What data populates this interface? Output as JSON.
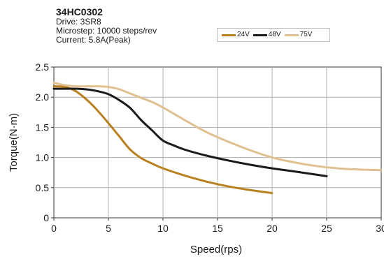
{
  "header": {
    "title": "34HC0302",
    "drive": "Drive: 3SR8",
    "microstep": "Microstep: 10000 steps/rev",
    "current": "Current: 5.8A(Peak)"
  },
  "chart_data": {
    "type": "line",
    "title": "34HC0302",
    "xlabel": "Speed(rps)",
    "ylabel": "Torque(N·m)",
    "xlim": [
      0,
      30
    ],
    "ylim": [
      0,
      2.5
    ],
    "xticks": [
      0,
      5,
      10,
      15,
      20,
      25,
      30
    ],
    "yticks": [
      0,
      0.5,
      1.0,
      1.5,
      2.0,
      2.5
    ],
    "xtick_labels": [
      "0",
      "5",
      "10",
      "15",
      "20",
      "25",
      "30"
    ],
    "ytick_labels": [
      "0",
      "0.5",
      "1.0",
      "1.5",
      "2.0",
      "2.5"
    ],
    "grid": true,
    "legend_position": "top-right",
    "series": [
      {
        "name": "24V",
        "color": "#b8801f",
        "x": [
          0,
          1,
          2,
          3,
          4,
          5,
          6,
          7,
          8,
          9,
          10,
          12,
          14,
          16,
          18,
          20
        ],
        "y": [
          2.18,
          2.17,
          2.1,
          1.96,
          1.78,
          1.57,
          1.35,
          1.13,
          0.99,
          0.9,
          0.82,
          0.7,
          0.6,
          0.52,
          0.46,
          0.41
        ]
      },
      {
        "name": "48V",
        "color": "#1a1a1a",
        "x": [
          0,
          1,
          2,
          3,
          4,
          5,
          6,
          7,
          8,
          9,
          10,
          11,
          12,
          14,
          16,
          18,
          20,
          22,
          25
        ],
        "y": [
          2.14,
          2.14,
          2.14,
          2.13,
          2.1,
          2.05,
          1.95,
          1.82,
          1.62,
          1.45,
          1.28,
          1.2,
          1.13,
          1.03,
          0.95,
          0.88,
          0.82,
          0.77,
          0.69
        ]
      },
      {
        "name": "75V",
        "color": "#e0c090",
        "x": [
          0,
          1,
          2,
          3,
          4,
          5,
          6,
          7,
          8,
          9,
          10,
          12,
          14,
          16,
          18,
          20,
          22,
          24,
          26,
          28,
          30
        ],
        "y": [
          2.24,
          2.2,
          2.18,
          2.18,
          2.18,
          2.17,
          2.13,
          2.06,
          1.99,
          1.92,
          1.83,
          1.62,
          1.42,
          1.26,
          1.12,
          1.0,
          0.92,
          0.86,
          0.82,
          0.8,
          0.79
        ]
      }
    ]
  }
}
